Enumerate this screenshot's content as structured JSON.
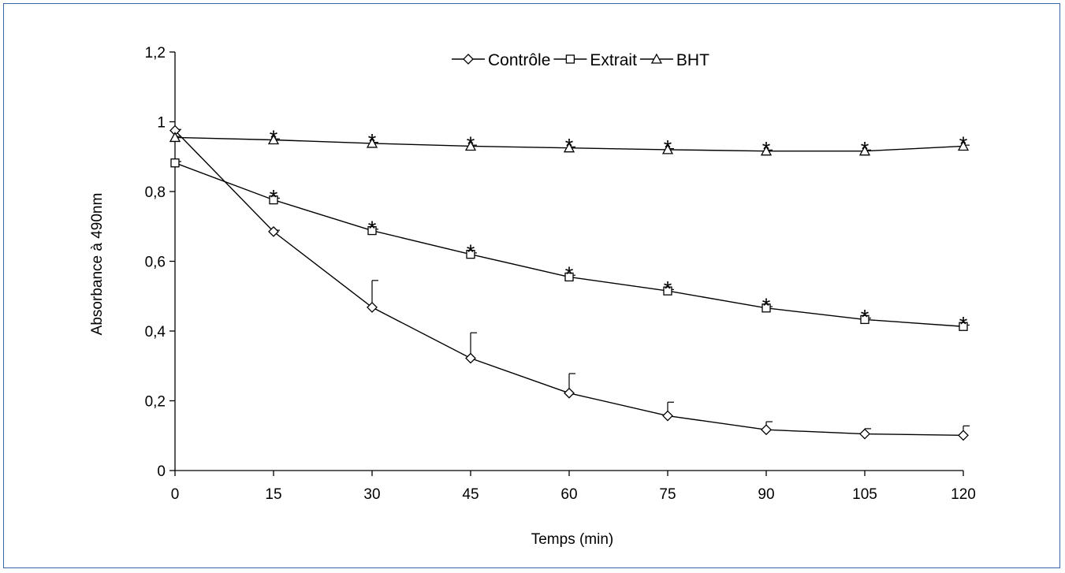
{
  "chart_data": {
    "type": "line",
    "title": "",
    "xlabel": "Temps (min)",
    "ylabel": "Absorbance à 490nm",
    "x": [
      0,
      15,
      30,
      45,
      60,
      75,
      90,
      105,
      120
    ],
    "x_tick_labels": [
      "0",
      "15",
      "30",
      "45",
      "60",
      "75",
      "90",
      "105",
      "120"
    ],
    "xlim": [
      0,
      120
    ],
    "ylim": [
      0,
      1.2
    ],
    "y_ticks": [
      0,
      0.2,
      0.4,
      0.6,
      0.8,
      1,
      1.2
    ],
    "y_tick_labels": [
      "0",
      "0,2",
      "0,4",
      "0,6",
      "0,8",
      "1",
      "1,2"
    ],
    "grid": false,
    "legend_position": "top-center",
    "significance_mark": "*",
    "series": [
      {
        "name": "Contrôle",
        "marker": "diamond",
        "values": [
          0.975,
          0.685,
          0.468,
          0.322,
          0.222,
          0.157,
          0.117,
          0.105,
          0.101
        ],
        "error": [
          0.003,
          0.004,
          0.077,
          0.073,
          0.056,
          0.039,
          0.023,
          0.015,
          0.027
        ],
        "significant": [
          false,
          false,
          false,
          false,
          false,
          false,
          false,
          false,
          false
        ]
      },
      {
        "name": "Extrait",
        "marker": "square",
        "values": [
          0.882,
          0.776,
          0.688,
          0.62,
          0.555,
          0.515,
          0.466,
          0.433,
          0.413
        ],
        "error": [
          0.004,
          0.005,
          0.004,
          0.004,
          0.005,
          0.004,
          0.004,
          0.004,
          0.004
        ],
        "significant": [
          false,
          true,
          true,
          true,
          true,
          true,
          true,
          true,
          true
        ]
      },
      {
        "name": "BHT",
        "marker": "triangle",
        "values": [
          0.955,
          0.948,
          0.938,
          0.93,
          0.925,
          0.92,
          0.916,
          0.916,
          0.93
        ],
        "error": [
          0.003,
          0.003,
          0.003,
          0.003,
          0.003,
          0.003,
          0.003,
          0.003,
          0.003
        ],
        "significant": [
          false,
          true,
          true,
          true,
          true,
          true,
          true,
          true,
          true
        ]
      }
    ]
  }
}
